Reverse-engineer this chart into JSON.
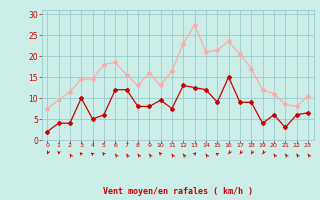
{
  "x": [
    0,
    1,
    2,
    3,
    4,
    5,
    6,
    7,
    8,
    9,
    10,
    11,
    12,
    13,
    14,
    15,
    16,
    17,
    18,
    19,
    20,
    21,
    22,
    23
  ],
  "wind_avg": [
    2,
    4,
    4,
    10,
    5,
    6,
    12,
    12,
    8,
    8,
    9.5,
    7.5,
    13,
    12.5,
    12,
    9,
    15,
    9,
    9,
    4,
    6,
    3,
    6,
    6.5
  ],
  "wind_gust": [
    7.5,
    9.5,
    11.5,
    14.5,
    14.5,
    18,
    18.5,
    15.5,
    13,
    16,
    13,
    16.5,
    23,
    27.5,
    21,
    21.5,
    23.5,
    20.5,
    17,
    12,
    11,
    8.5,
    8,
    10.5
  ],
  "avg_color": "#cc0000",
  "gust_color": "#ffaaaa",
  "bg_color": "#cceee8",
  "grid_color": "#99cccc",
  "tick_color": "#cc0000",
  "xlabel": "Vent moyen/en rafales ( km/h )",
  "xlabel_color": "#cc0000",
  "yticks": [
    0,
    5,
    10,
    15,
    20,
    25,
    30
  ],
  "xtick_labels": [
    "0",
    "1",
    "2",
    "3",
    "4",
    "5",
    "6",
    "7",
    "8",
    "9",
    "10",
    "11",
    "12",
    "13",
    "14",
    "15",
    "16",
    "17",
    "18",
    "19",
    "20",
    "21",
    "22",
    "23"
  ],
  "ylim": [
    0,
    31
  ],
  "xlim": [
    -0.5,
    23.5
  ],
  "arrow_angles": [
    220,
    195,
    315,
    300,
    295,
    300,
    310,
    315,
    310,
    310,
    305,
    315,
    310,
    60,
    310,
    290,
    230,
    230,
    225,
    230,
    310,
    310,
    310,
    310
  ]
}
